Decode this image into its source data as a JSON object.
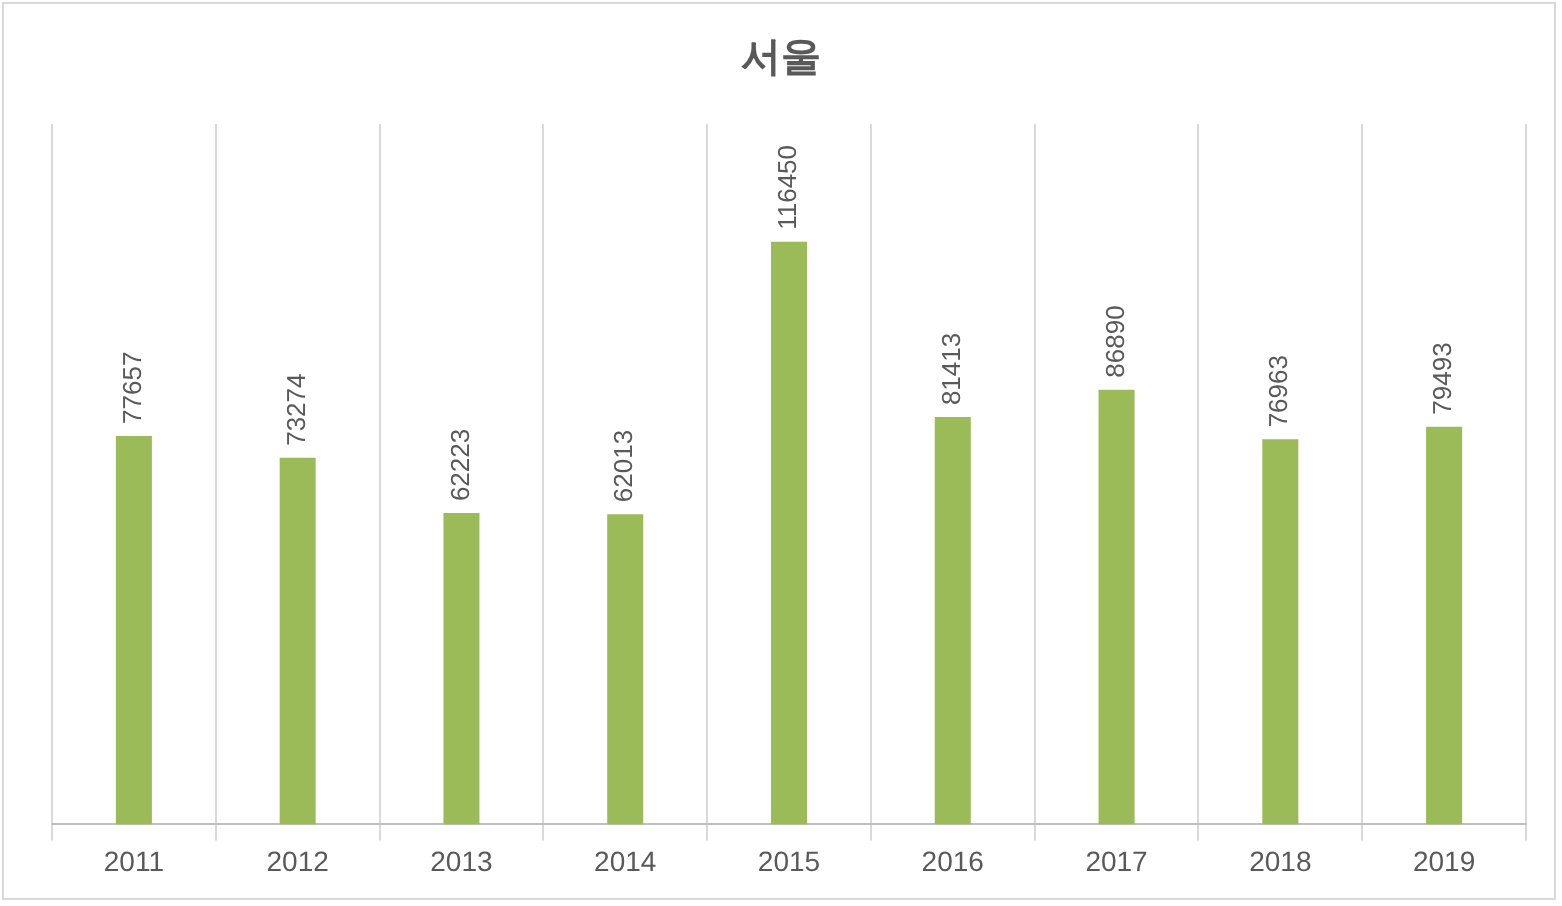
{
  "chart_data": {
    "type": "bar",
    "title": "서울",
    "categories": [
      "2011",
      "2012",
      "2013",
      "2014",
      "2015",
      "2016",
      "2017",
      "2018",
      "2019"
    ],
    "values": [
      77657,
      73274,
      62223,
      62013,
      116450,
      81413,
      86890,
      76963,
      79493
    ],
    "color": "#9bbb59",
    "data_labels": true,
    "grid": "x",
    "legend": false
  }
}
